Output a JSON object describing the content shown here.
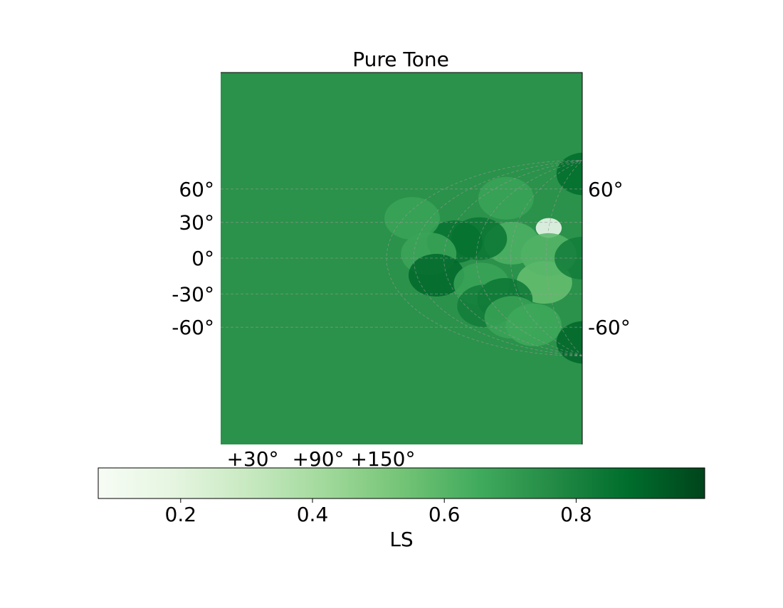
{
  "chart_data": {
    "type": "heatmap",
    "title": "Pure Tone",
    "projection": "hammer (partial sky)",
    "colormap": "Greens",
    "colorbar": {
      "label": "LS",
      "range": [
        0.075,
        0.995
      ],
      "ticks": [
        0.2,
        0.4,
        0.6,
        0.8
      ],
      "tick_labels": [
        "0.2",
        "0.4",
        "0.6",
        "0.8"
      ],
      "orientation": "horizontal",
      "position": "bottom"
    },
    "latitude_labels_left": [
      "60°",
      "30°",
      "0°",
      "-30°",
      "-60°"
    ],
    "latitude_labels_right": [
      "60°",
      "-60°"
    ],
    "longitude_labels": [
      "+30°",
      "+90°",
      "+150°"
    ],
    "grid": true,
    "base_value": 0.74,
    "features": [
      {
        "lon": 30,
        "lat": 25,
        "value": 0.08
      },
      {
        "lon": 33,
        "lat": -20,
        "value": 0.56
      },
      {
        "lon": 28,
        "lat": 3,
        "value": 0.6
      },
      {
        "lon": 60,
        "lat": 12,
        "value": 0.62
      },
      {
        "lon": 90,
        "lat": 15,
        "value": 0.85
      },
      {
        "lon": 112,
        "lat": 12,
        "value": 0.86
      },
      {
        "lon": 135,
        "lat": 3,
        "value": 0.67
      },
      {
        "lon": 130,
        "lat": -12,
        "value": 0.89
      },
      {
        "lon": 90,
        "lat": -20,
        "value": 0.68
      },
      {
        "lon": 75,
        "lat": -33,
        "value": 0.84
      },
      {
        "lon": 100,
        "lat": -37,
        "value": 0.82
      },
      {
        "lon": 82,
        "lat": -48,
        "value": 0.68
      },
      {
        "lon": 65,
        "lat": -56,
        "value": 0.66
      },
      {
        "lon": 90,
        "lat": 48,
        "value": 0.68
      },
      {
        "lon": 170,
        "lat": 25,
        "value": 0.68
      },
      {
        "lon": -5,
        "lat": -75,
        "value": 0.9
      },
      {
        "lon": -5,
        "lat": 75,
        "value": 0.88
      },
      {
        "lon": 0,
        "lat": 0,
        "value": 0.82
      }
    ]
  }
}
